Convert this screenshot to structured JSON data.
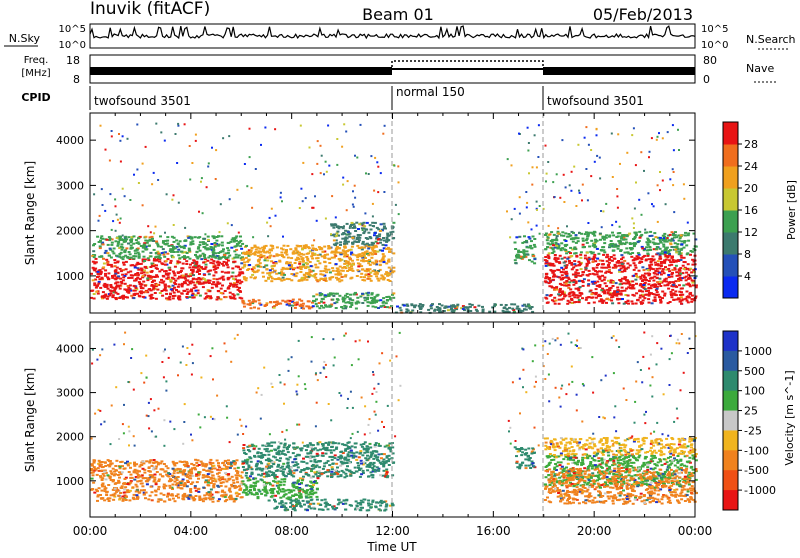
{
  "header": {
    "station": "Inuvik (fitACF)",
    "beam": "Beam 01",
    "date": "05/Feb/2013"
  },
  "noise_panel": {
    "left_label": "N.Sky",
    "right_label": "N.Search",
    "left_ticks": [
      "10^5",
      "10^0"
    ],
    "right_ticks": [
      "10^5",
      "10^0"
    ]
  },
  "freq_panel": {
    "left_label_line1": "Freq.",
    "left_label_line2": "[MHz]",
    "left_ticks": [
      "18",
      "8"
    ],
    "right_ticks": [
      "80",
      "0"
    ],
    "right_label": "Nave"
  },
  "cpid": {
    "label": "CPID",
    "segments": [
      {
        "start_h": 0,
        "end_h": 12,
        "name": "twofsound 3501"
      },
      {
        "start_h": 12,
        "end_h": 18,
        "name": "normal 150"
      },
      {
        "start_h": 18,
        "end_h": 24,
        "name": "twofsound 3501"
      }
    ]
  },
  "chart_data": [
    {
      "type": "heatmap",
      "title": "",
      "xlabel": "",
      "ylabel": "Slant Range [km]",
      "xlim": [
        0,
        24
      ],
      "ylim": [
        180,
        4600
      ],
      "yticks": [
        1000,
        2000,
        3000,
        4000
      ],
      "colorbar": {
        "label": "Power [dB]",
        "ticks": [
          "4",
          "8",
          "12",
          "16",
          "20",
          "24",
          "28"
        ],
        "colors": [
          "#0a2af0",
          "#2450b8",
          "#3c7a6e",
          "#3ca050",
          "#c8c832",
          "#f0a01e",
          "#f06e1e",
          "#e81414"
        ]
      },
      "regions": [
        {
          "t0": 0.0,
          "t1": 6.0,
          "r0": 500,
          "r1": 1400,
          "level": 28
        },
        {
          "t0": 0.0,
          "t1": 6.0,
          "r0": 1400,
          "r1": 1900,
          "level": 12
        },
        {
          "t0": 6.0,
          "t1": 8.8,
          "r0": 300,
          "r1": 500,
          "level": 24
        },
        {
          "t0": 6.0,
          "t1": 12.0,
          "r0": 900,
          "r1": 1700,
          "level": 20
        },
        {
          "t0": 8.8,
          "t1": 12.0,
          "r0": 300,
          "r1": 650,
          "level": 12
        },
        {
          "t0": 9.5,
          "t1": 12.0,
          "r0": 1700,
          "r1": 2200,
          "level": 8
        },
        {
          "t0": 12.0,
          "t1": 17.5,
          "r0": 200,
          "r1": 400,
          "level": 8
        },
        {
          "t0": 16.8,
          "t1": 17.6,
          "r0": 1300,
          "r1": 1900,
          "level": 12
        },
        {
          "t0": 18.0,
          "t1": 24.0,
          "r0": 400,
          "r1": 1500,
          "level": 28
        },
        {
          "t0": 18.0,
          "t1": 24.0,
          "r0": 1500,
          "r1": 2000,
          "level": 12
        }
      ]
    },
    {
      "type": "heatmap",
      "title": "",
      "xlabel": "Time UT",
      "ylabel": "Slant Range [km]",
      "xlim": [
        0,
        24
      ],
      "ylim": [
        180,
        4600
      ],
      "yticks": [
        1000,
        2000,
        3000,
        4000
      ],
      "xticks": [
        "00:00",
        "04:00",
        "08:00",
        "12:00",
        "16:00",
        "20:00",
        "00:00"
      ],
      "colorbar": {
        "label": "Velocity [m s^-1]",
        "ticks": [
          "1000",
          "500",
          "100",
          "25",
          "-25",
          "-100",
          "-500",
          "-1000"
        ],
        "colors": [
          "#1e32c8",
          "#2a5aa0",
          "#2e8a6e",
          "#3caa3c",
          "#c8c8c8",
          "#f0b41e",
          "#f0821e",
          "#f05014",
          "#e81414"
        ]
      },
      "regions": [
        {
          "t0": 0.0,
          "t1": 6.0,
          "r0": 550,
          "r1": 1500,
          "level": -500
        },
        {
          "t0": 6.0,
          "t1": 12.0,
          "r0": 1100,
          "r1": 1900,
          "level": 100
        },
        {
          "t0": 6.0,
          "t1": 9.0,
          "r0": 600,
          "r1": 1100,
          "level": 25
        },
        {
          "t0": 7.0,
          "t1": 12.0,
          "r0": 350,
          "r1": 600,
          "level": 100
        },
        {
          "t0": 16.8,
          "t1": 17.6,
          "r0": 1300,
          "r1": 1800,
          "level": 100
        },
        {
          "t0": 18.0,
          "t1": 24.0,
          "r0": 900,
          "r1": 1600,
          "level": 25
        },
        {
          "t0": 18.0,
          "t1": 24.0,
          "r0": 500,
          "r1": 1300,
          "level": -500
        },
        {
          "t0": 18.0,
          "t1": 24.0,
          "r0": 1600,
          "r1": 2000,
          "level": -100
        }
      ]
    }
  ]
}
